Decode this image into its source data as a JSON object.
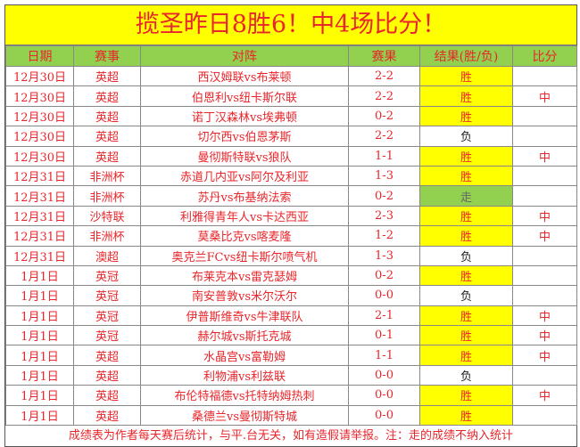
{
  "title": "揽圣昨日8胜6！中4场比分！",
  "headers": [
    "日期",
    "赛事",
    "对阵",
    "赛果",
    "结果(胜/负)",
    "比分"
  ],
  "rows": [
    [
      "12月30日",
      "英超",
      "西汉姆联vs布莱顿",
      "2-2",
      "胜",
      ""
    ],
    [
      "12月30日",
      "英超",
      "伯恩利vs纽卡斯尔联",
      "2-2",
      "胜",
      "中"
    ],
    [
      "12月30日",
      "英超",
      "诺丁汉森林vs埃弗顿",
      "0-2",
      "胜",
      ""
    ],
    [
      "12月30日",
      "英超",
      "切尔西vs伯恩茅斯",
      "2-2",
      "负",
      ""
    ],
    [
      "12月30日",
      "英超",
      "曼彻斯特联vs狼队",
      "1-1",
      "胜",
      "中"
    ],
    [
      "12月31日",
      "非洲杯",
      "赤道几内亚vs阿尔及利亚",
      "1-3",
      "胜",
      ""
    ],
    [
      "12月31日",
      "非洲杯",
      "苏丹vs布基纳法索",
      "0-2",
      "走",
      ""
    ],
    [
      "12月31日",
      "沙特联",
      "利雅得青年人vs卡达西亚",
      "2-3",
      "胜",
      "中"
    ],
    [
      "12月31日",
      "非洲杯",
      "莫桑比克vs喀麦隆",
      "1-2",
      "胜",
      "中"
    ],
    [
      "12月31日",
      "澳超",
      "奥克兰FCvs纽卡斯尔喷气机",
      "1-3",
      "负",
      ""
    ],
    [
      "1月1日",
      "英冠",
      "布莱克本vs雷克瑟姆",
      "0-2",
      "胜",
      ""
    ],
    [
      "1月1日",
      "英冠",
      "南安普敦vs米尔沃尔",
      "0-0",
      "负",
      ""
    ],
    [
      "1月1日",
      "英冠",
      "伊普斯维奇vs牛津联队",
      "2-1",
      "胜",
      "中"
    ],
    [
      "1月1日",
      "英冠",
      "赫尔城vs斯托克城",
      "0-1",
      "胜",
      "中"
    ],
    [
      "1月1日",
      "英超",
      "水晶宫vs富勒姆",
      "1-1",
      "胜",
      "中"
    ],
    [
      "1月1日",
      "英超",
      "利物浦vs利兹联",
      "0-0",
      "负",
      ""
    ],
    [
      "1月1日",
      "英超",
      "布伦特福德vs托特纳姆热刺",
      "0-0",
      "胜",
      "中"
    ],
    [
      "1月1日",
      "英超",
      "桑德兰vs曼彻斯特城",
      "0-0",
      "胜",
      ""
    ]
  ],
  "footer": "成绩表为作者每天赛后统计，与平.台无关，如有造假请举报。注：走的成绩不纳入统计",
  "colors": {
    "title_bg": "#FFFF00",
    "header_bg": "#92D050",
    "text": "#E8262B",
    "win_bg": "#FFFF00",
    "push_bg": "#92D050"
  }
}
